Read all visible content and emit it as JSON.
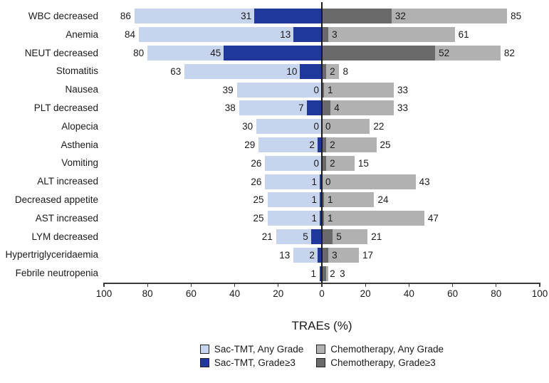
{
  "chart_data": {
    "type": "bar",
    "variant": "diverging-butterfly",
    "title": "",
    "xlabel": "TRAEs (%)",
    "x_ticks": [
      "100",
      "80",
      "60",
      "40",
      "20",
      "0",
      "20",
      "40",
      "60",
      "80",
      "100"
    ],
    "axis_range_each_side": [
      0,
      100
    ],
    "grid": false,
    "legend_position": "bottom",
    "left_side_group": "Sac-TMT",
    "right_side_group": "Chemotherapy",
    "legend": [
      {
        "name": "Sac-TMT, Any Grade",
        "key": "sac_any",
        "color": "#c7d4ed"
      },
      {
        "name": "Chemotherapy, Any Grade",
        "key": "chemo_any",
        "color": "#b1b1b1"
      },
      {
        "name": "Sac-TMT, Grade≥3",
        "key": "sac_g3",
        "color": "#1f3899"
      },
      {
        "name": "Chemotherapy, Grade≥3",
        "key": "chemo_g3",
        "color": "#696969"
      }
    ],
    "rows": [
      {
        "label": "WBC decreased",
        "sac_any": 86,
        "sac_g3": 31,
        "chemo_g3": 32,
        "chemo_any": 85,
        "labels": {
          "sac_any": "86",
          "sac_g3": "31",
          "chemo_g3": "32",
          "chemo_any": "85"
        }
      },
      {
        "label": "Anemia",
        "sac_any": 84,
        "sac_g3": 13,
        "chemo_g3": 3,
        "chemo_any": 61,
        "labels": {
          "sac_any": "84",
          "sac_g3": "13",
          "chemo_g3": "3",
          "chemo_any": "61"
        }
      },
      {
        "label": "NEUT decreased",
        "sac_any": 80,
        "sac_g3": 45,
        "chemo_g3": 52,
        "chemo_any": 82,
        "labels": {
          "sac_any": "80",
          "sac_g3": "45",
          "chemo_g3": "52",
          "chemo_any": "82"
        }
      },
      {
        "label": "Stomatitis",
        "sac_any": 63,
        "sac_g3": 10,
        "chemo_g3": 2,
        "chemo_any": 8,
        "labels": {
          "sac_any": "63",
          "sac_g3": "10",
          "chemo_g3": "2",
          "chemo_any": "8"
        }
      },
      {
        "label": "Nausea",
        "sac_any": 39,
        "sac_g3": 0,
        "chemo_g3": 1,
        "chemo_any": 33,
        "labels": {
          "sac_any": "39",
          "sac_g3": "0",
          "chemo_g3": "1",
          "chemo_any": "33"
        }
      },
      {
        "label": "PLT decreased",
        "sac_any": 38,
        "sac_g3": 7,
        "chemo_g3": 4,
        "chemo_any": 33,
        "labels": {
          "sac_any": "38",
          "sac_g3": "7",
          "chemo_g3": "4",
          "chemo_any": "33"
        }
      },
      {
        "label": "Alopecia",
        "sac_any": 30,
        "sac_g3": 0,
        "chemo_g3": 0,
        "chemo_any": 22,
        "labels": {
          "sac_any": "30",
          "sac_g3": "0",
          "chemo_g3": "0",
          "chemo_any": "22"
        }
      },
      {
        "label": "Asthenia",
        "sac_any": 29,
        "sac_g3": 2,
        "chemo_g3": 2,
        "chemo_any": 25,
        "labels": {
          "sac_any": "29",
          "sac_g3": "2",
          "chemo_g3": "2",
          "chemo_any": "25"
        }
      },
      {
        "label": "Vomiting",
        "sac_any": 26,
        "sac_g3": 0,
        "chemo_g3": 2,
        "chemo_any": 15,
        "labels": {
          "sac_any": "26",
          "sac_g3": "0",
          "chemo_g3": "2",
          "chemo_any": "15"
        }
      },
      {
        "label": "ALT increased",
        "sac_any": 26,
        "sac_g3": 1,
        "chemo_g3": 0,
        "chemo_any": 43,
        "labels": {
          "sac_any": "26",
          "sac_g3": "1",
          "chemo_g3": "0",
          "chemo_any": "43"
        }
      },
      {
        "label": "Decreased appetite",
        "sac_any": 25,
        "sac_g3": 1,
        "chemo_g3": 1,
        "chemo_any": 24,
        "labels": {
          "sac_any": "25",
          "sac_g3": "1",
          "chemo_g3": "1",
          "chemo_any": "24"
        }
      },
      {
        "label": "AST increased",
        "sac_any": 25,
        "sac_g3": 1,
        "chemo_g3": 1,
        "chemo_any": 47,
        "labels": {
          "sac_any": "25",
          "sac_g3": "1",
          "chemo_g3": "1",
          "chemo_any": "47"
        }
      },
      {
        "label": "LYM decreased",
        "sac_any": 21,
        "sac_g3": 5,
        "chemo_g3": 5,
        "chemo_any": 21,
        "labels": {
          "sac_any": "21",
          "sac_g3": "5",
          "chemo_g3": "5",
          "chemo_any": "21"
        }
      },
      {
        "label": "Hypertriglyceridaemia",
        "sac_any": 13,
        "sac_g3": 2,
        "chemo_g3": 3,
        "chemo_any": 17,
        "labels": {
          "sac_any": "13",
          "sac_g3": "2",
          "chemo_g3": "3",
          "chemo_any": "17"
        }
      },
      {
        "label": "Febrile neutropenia",
        "sac_any": 1,
        "sac_g3": 1,
        "chemo_g3": 2,
        "chemo_any": 3,
        "labels": {
          "sac_any": "1",
          "sac_g3": "",
          "chemo_g3": "2",
          "chemo_any": "3"
        }
      }
    ]
  },
  "colors": {
    "sac_any": "#c7d4ed",
    "sac_g3": "#1f3899",
    "chemo_any": "#b1b1b1",
    "chemo_g3": "#696969",
    "axis": "#3a3a3a",
    "text": "#1a1a1a",
    "background": "#ffffff"
  }
}
